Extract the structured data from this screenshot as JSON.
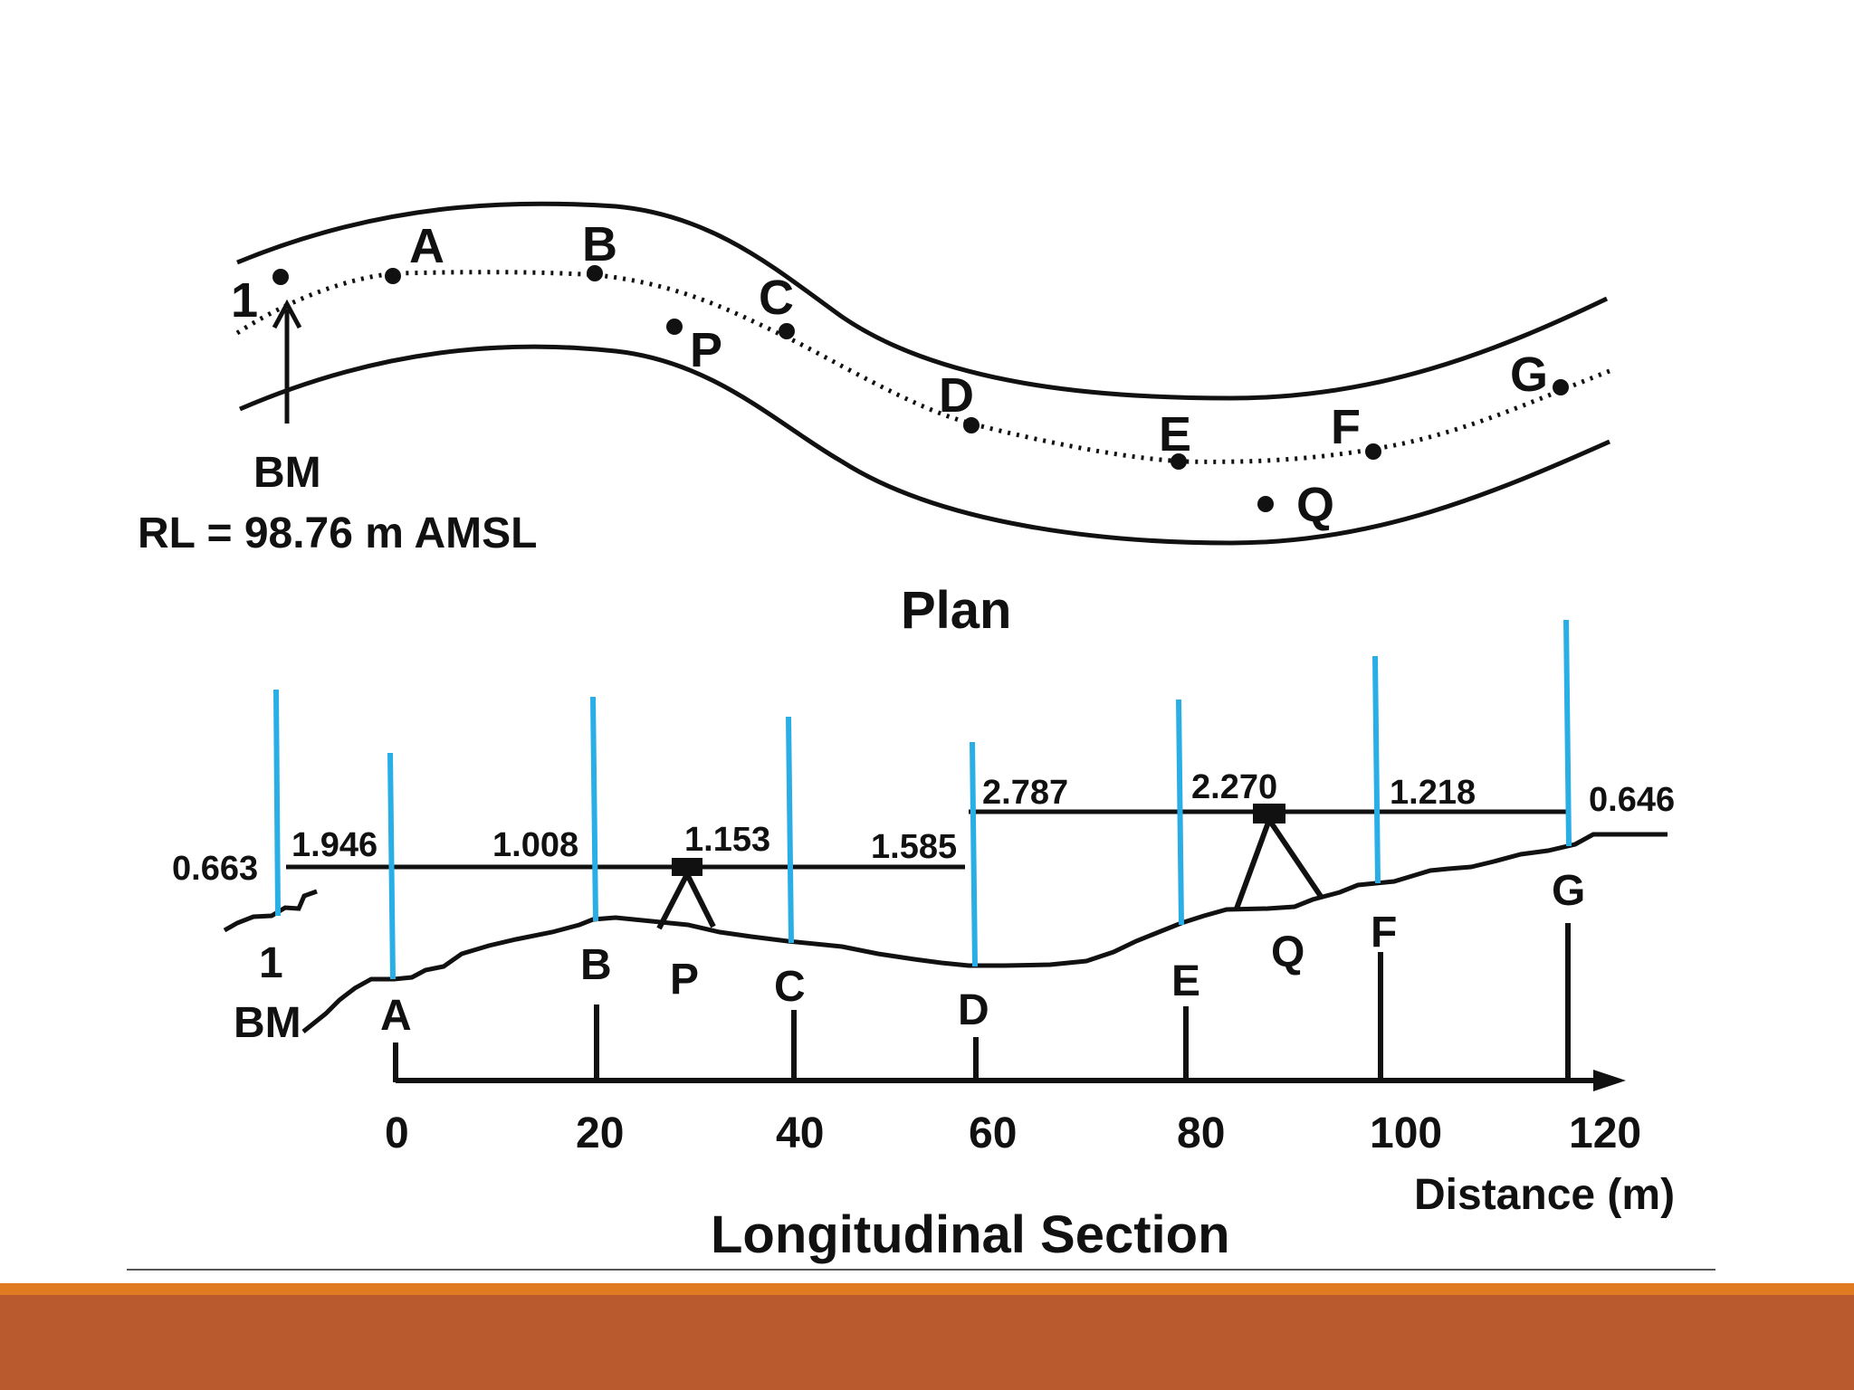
{
  "plan": {
    "title": "Plan",
    "stations": {
      "s1": "1",
      "A": "A",
      "B": "B",
      "C": "C",
      "P": "P",
      "D": "D",
      "E": "E",
      "F": "F",
      "G": "G",
      "Q": "Q"
    },
    "bm_label": "BM",
    "rl_label": "RL = 98.76 m AMSL"
  },
  "section": {
    "title": "Longitudinal Section",
    "readings": {
      "r_bm": "0.663",
      "r_a": "1.946",
      "r_b": "1.008",
      "r_c": "1.153",
      "r_d1": "1.585",
      "r_d2": "2.787",
      "r_e": "2.270",
      "r_f": "1.218",
      "r_g": "0.646"
    },
    "points": {
      "s1": "1",
      "bm": "BM",
      "A": "A",
      "B": "B",
      "P": "P",
      "C": "C",
      "D": "D",
      "E": "E",
      "Q": "Q",
      "F": "F",
      "G": "G"
    },
    "axis": {
      "ticks": [
        "0",
        "20",
        "40",
        "60",
        "80",
        "100",
        "120"
      ],
      "label": "Distance (m)"
    }
  },
  "colors": {
    "staff": "#29aee6",
    "ink": "#111111",
    "band": "#b85a2e",
    "stripe": "#e07b22"
  }
}
